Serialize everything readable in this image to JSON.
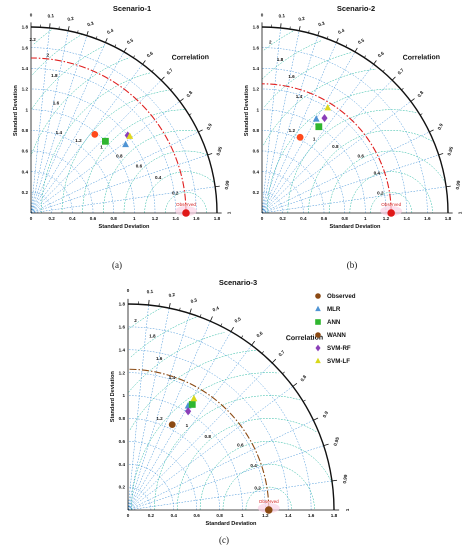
{
  "captions": [
    "(a)",
    "(b)",
    "(c)"
  ],
  "legend": {
    "entries": [
      {
        "label": "Observed",
        "marker": "circle",
        "color": "#8b4a14"
      },
      {
        "label": "MLR",
        "marker": "triangle",
        "color": "#4f94d4"
      },
      {
        "label": "ANN",
        "marker": "square",
        "color": "#2fb62f"
      },
      {
        "label": "WANN",
        "marker": "circle",
        "color": "#8b4a14"
      },
      {
        "label": "SVM-RF",
        "marker": "diamond",
        "color": "#8b3fb8"
      },
      {
        "label": "SVM-LF",
        "marker": "triangle",
        "color": "#d8d81a"
      }
    ]
  },
  "chart_data": [
    {
      "type": "scatter",
      "subtype": "taylor-diagram",
      "title": "Scenario-1",
      "xlabel": "Standard Deviation",
      "ylabel": "Standard Deviation",
      "corr_label": "Correlation",
      "std_max": 1.8,
      "std_ticks": [
        "0",
        "0.2",
        "0.4",
        "0.6",
        "0.8",
        "1",
        "1.2",
        "1.4",
        "1.6",
        "1.8"
      ],
      "corr_ticks": [
        "0",
        "0.1",
        "0.2",
        "0.3",
        "0.4",
        "0.5",
        "0.6",
        "0.7",
        "0.8",
        "0.9",
        "0.95",
        "0.99",
        "1"
      ],
      "rms_ticks": [
        "0.2",
        "0.4",
        "0.6",
        "0.8",
        "1",
        "1.2",
        "1.4",
        "1.6",
        "1.8",
        "2",
        "2.2"
      ],
      "observed_std": 1.5,
      "observed_label": "Observed",
      "points": [
        {
          "model": "MLR",
          "std": 1.13,
          "corr": 0.81,
          "marker": "triangle",
          "color": "#4f94d4"
        },
        {
          "model": "ANN",
          "std": 1.0,
          "corr": 0.72,
          "marker": "square",
          "color": "#2fb62f"
        },
        {
          "model": "WANN",
          "std": 0.98,
          "corr": 0.63,
          "marker": "circle",
          "color": "#ff4a1c"
        },
        {
          "model": "SVM-RF",
          "std": 1.2,
          "corr": 0.78,
          "marker": "diamond",
          "color": "#8b3fb8"
        },
        {
          "model": "SVM-LF",
          "std": 1.21,
          "corr": 0.79,
          "marker": "triangle",
          "color": "#e0d81e"
        }
      ]
    },
    {
      "type": "scatter",
      "subtype": "taylor-diagram",
      "title": "Scenario-2",
      "xlabel": "Standard Deviation",
      "ylabel": "Standard Deviation",
      "corr_label": "Correlation",
      "std_max": 1.8,
      "std_ticks": [
        "0",
        "0.2",
        "0.4",
        "0.6",
        "0.8",
        "1",
        "1.2",
        "1.4",
        "1.6",
        "1.8"
      ],
      "corr_ticks": [
        "0",
        "0.1",
        "0.2",
        "0.3",
        "0.4",
        "0.5",
        "0.6",
        "0.7",
        "0.8",
        "0.9",
        "0.95",
        "0.99",
        "1"
      ],
      "rms_ticks": [
        "0.2",
        "0.4",
        "0.6",
        "0.8",
        "1",
        "1.2",
        "1.4",
        "1.6",
        "1.8",
        "2",
        "2.2"
      ],
      "observed_std": 1.25,
      "observed_label": "Observed",
      "points": [
        {
          "model": "MLR",
          "std": 1.05,
          "corr": 0.5,
          "marker": "triangle",
          "color": "#4f94d4"
        },
        {
          "model": "ANN",
          "std": 1.0,
          "corr": 0.55,
          "marker": "square",
          "color": "#2fb62f"
        },
        {
          "model": "WANN",
          "std": 0.82,
          "corr": 0.45,
          "marker": "circle",
          "color": "#ff4a1c"
        },
        {
          "model": "SVM-RF",
          "std": 1.1,
          "corr": 0.55,
          "marker": "diamond",
          "color": "#8b3fb8"
        },
        {
          "model": "SVM-LF",
          "std": 1.2,
          "corr": 0.53,
          "marker": "triangle",
          "color": "#e0d81e"
        }
      ]
    },
    {
      "type": "scatter",
      "subtype": "taylor-diagram",
      "title": "Scenario-3",
      "xlabel": "Standard Deviation",
      "ylabel": "Standard Deviation",
      "corr_label": "Correlation",
      "std_max": 1.8,
      "std_ticks": [
        "0",
        "0.2",
        "0.4",
        "0.6",
        "0.8",
        "1",
        "1.2",
        "1.4",
        "1.6",
        "1.8"
      ],
      "corr_ticks": [
        "0",
        "0.1",
        "0.2",
        "0.3",
        "0.4",
        "0.5",
        "0.6",
        "0.7",
        "0.8",
        "0.9",
        "0.95",
        "0.99",
        "1"
      ],
      "rms_ticks": [
        "0.2",
        "0.4",
        "0.6",
        "0.8",
        "1",
        "1.2",
        "1.4",
        "1.6",
        "1.8",
        "2",
        "2.2"
      ],
      "observed_std": 1.23,
      "observed_label": "Observed",
      "points": [
        {
          "model": "MLR",
          "std": 1.05,
          "corr": 0.5,
          "marker": "triangle",
          "color": "#4f94d4"
        },
        {
          "model": "ANN",
          "std": 1.08,
          "corr": 0.52,
          "marker": "square",
          "color": "#2fb62f"
        },
        {
          "model": "WANN",
          "std": 0.84,
          "corr": 0.46,
          "marker": "circle",
          "color": "#8b4a14"
        },
        {
          "model": "SVM-RF",
          "std": 1.01,
          "corr": 0.52,
          "marker": "diamond",
          "color": "#8b3fb8"
        },
        {
          "model": "SVM-LF",
          "std": 1.13,
          "corr": 0.51,
          "marker": "triangle",
          "color": "#d8d81a"
        }
      ]
    }
  ],
  "colors": {
    "std_arc": "#2a86d4",
    "corr_line": "#2a86d4",
    "rms_arc": "#20b8a0",
    "observed_arc_1": "#e02020",
    "observed_arc_2": "#e02020",
    "observed_arc_3": "#8b4a14",
    "observed_marker": "#e01818",
    "observed_marker_3": "#8b4a14",
    "axis": "#111111"
  }
}
